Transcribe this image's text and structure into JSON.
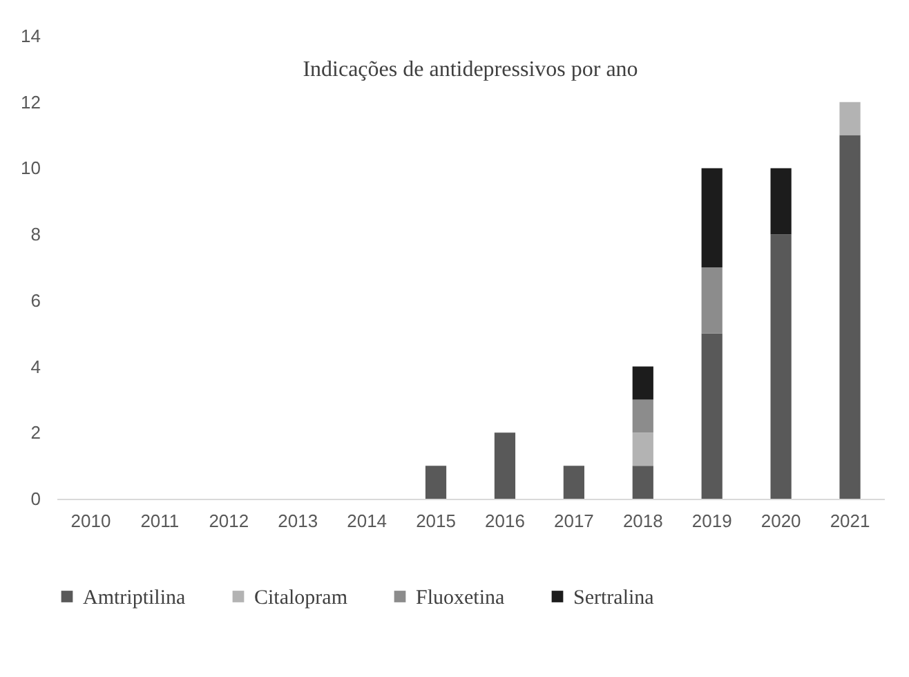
{
  "chart_data": {
    "type": "bar",
    "title": "Indicações de antidepressivos por ano",
    "stacked": true,
    "categories": [
      "2010",
      "2011",
      "2012",
      "2013",
      "2014",
      "2015",
      "2016",
      "2017",
      "2018",
      "2019",
      "2020",
      "2021"
    ],
    "series": [
      {
        "name": "Amtriptilina",
        "color": "#595959",
        "values": [
          0,
          0,
          0,
          0,
          0,
          1,
          2,
          1,
          1,
          5,
          8,
          11
        ]
      },
      {
        "name": "Citalopram",
        "color": "#b3b3b3",
        "values": [
          0,
          0,
          0,
          0,
          0,
          0,
          0,
          0,
          1,
          0,
          0,
          1
        ]
      },
      {
        "name": "Fluoxetina",
        "color": "#8c8c8c",
        "values": [
          0,
          0,
          0,
          0,
          0,
          0,
          0,
          0,
          1,
          2,
          0,
          0
        ]
      },
      {
        "name": "Sertralina",
        "color": "#1c1c1c",
        "values": [
          0,
          0,
          0,
          0,
          0,
          0,
          0,
          0,
          1,
          3,
          2,
          0
        ]
      }
    ],
    "ylim": [
      0,
      14
    ],
    "yticks": [
      0,
      2,
      4,
      6,
      8,
      10,
      12,
      14
    ],
    "grid": false,
    "legend": "bottom"
  }
}
